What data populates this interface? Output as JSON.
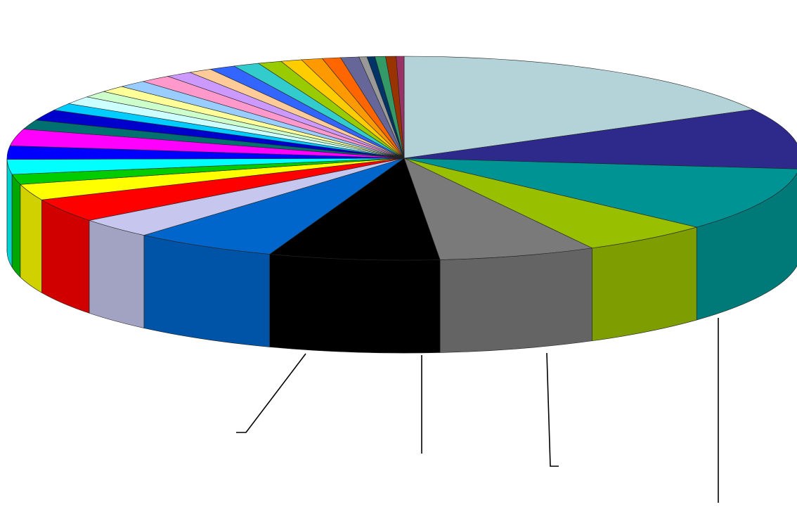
{
  "chart_data": {
    "type": "pie",
    "style": "3d-exploded-view",
    "title": "",
    "series": [
      {
        "labels": [
          "",
          "",
          "",
          "",
          "",
          "",
          "",
          "",
          "",
          "",
          "",
          "",
          "",
          "",
          "",
          "",
          "",
          "",
          "",
          "",
          "",
          "",
          "",
          "",
          "",
          "",
          "",
          "",
          "",
          "",
          "",
          "",
          "",
          "",
          "",
          ""
        ],
        "values": [
          16.0,
          9.0,
          9.5,
          5.0,
          6.0,
          6.5,
          5.5,
          3.0,
          3.5,
          2.4,
          1.5,
          2.2,
          2.0,
          2.5,
          1.4,
          1.6,
          1.1,
          1.2,
          1.0,
          1.0,
          1.1,
          1.2,
          1.0,
          0.9,
          1.0,
          1.0,
          0.9,
          0.8,
          0.8,
          0.7,
          0.7,
          0.3,
          0.3,
          0.4,
          0.4,
          0.3
        ],
        "colors": [
          "#b3d3d8",
          "#2e2a8c",
          "#009393",
          "#98c000",
          "#7a7a7a",
          "#000000",
          "#0066cc",
          "#c6c6ee",
          "#ff0000",
          "#ffff00",
          "#00cc00",
          "#00ffff",
          "#0000ff",
          "#ff00ff",
          "#007070",
          "#0000cc",
          "#00ccff",
          "#ccffff",
          "#ccffcc",
          "#ffff99",
          "#99ccff",
          "#ff99cc",
          "#cc99ff",
          "#ffcc99",
          "#3366ff",
          "#33cccc",
          "#99cc00",
          "#ffcc00",
          "#ff9900",
          "#ff6600",
          "#666699",
          "#999999",
          "#003366",
          "#339966",
          "#993300",
          "#993366"
        ]
      }
    ],
    "legend": "none",
    "leader_lines": 4
  }
}
